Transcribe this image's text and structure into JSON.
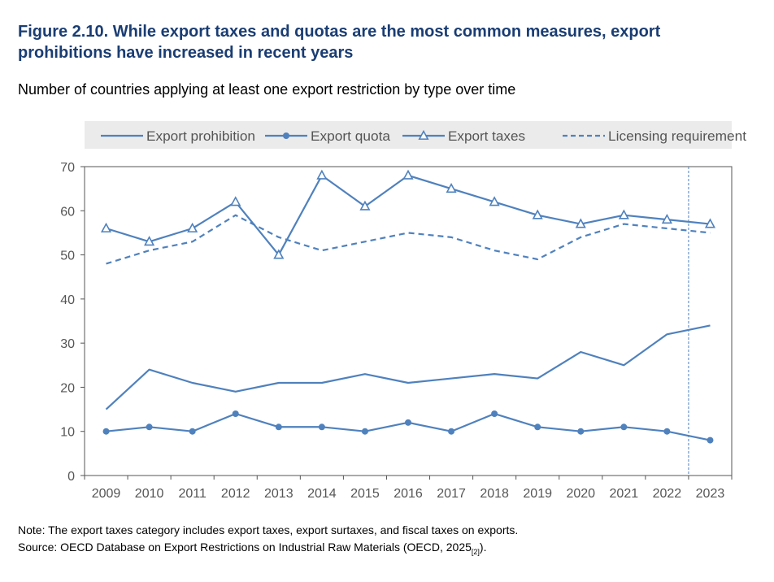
{
  "title": "Figure 2.10. While export taxes and quotas are the most common measures, export prohibitions have increased in recent years",
  "subtitle": "Number of countries applying at least one export restriction by type over time",
  "note": "Note: The export taxes category includes export taxes, export surtaxes, and fiscal taxes on exports.",
  "source_text": "Source: OECD Database on Export Restrictions on Industrial Raw Materials (OECD, 2025",
  "source_ref": "[2]",
  "source_end": ").",
  "colors": {
    "series": "#4f81bd",
    "axis": "#555555",
    "legend_bg": "#ebebeb",
    "title": "#1a3d73"
  },
  "chart_data": {
    "type": "line",
    "categories": [
      "2009",
      "2010",
      "2011",
      "2012",
      "2013",
      "2014",
      "2015",
      "2016",
      "2017",
      "2018",
      "2019",
      "2020",
      "2021",
      "2022",
      "2023"
    ],
    "ylim": [
      0,
      70
    ],
    "yticks": [
      0,
      10,
      20,
      30,
      40,
      50,
      60,
      70
    ],
    "grid": false,
    "legend_position": "top",
    "reference_line_after": "2022",
    "series": [
      {
        "name": "Export prohibition",
        "marker": "none",
        "dash": "solid",
        "values": [
          15,
          24,
          21,
          19,
          21,
          21,
          23,
          21,
          22,
          23,
          22,
          28,
          25,
          32,
          34
        ]
      },
      {
        "name": "Export quota",
        "marker": "circle",
        "dash": "solid",
        "values": [
          10,
          11,
          10,
          14,
          11,
          11,
          10,
          12,
          10,
          14,
          11,
          10,
          11,
          10,
          8
        ]
      },
      {
        "name": "Export taxes",
        "marker": "triangle",
        "dash": "solid",
        "values": [
          56,
          53,
          56,
          62,
          50,
          68,
          61,
          68,
          65,
          62,
          59,
          57,
          59,
          58,
          57
        ]
      },
      {
        "name": "Licensing requirement",
        "marker": "none",
        "dash": "dashed",
        "values": [
          48,
          51,
          53,
          59,
          54,
          51,
          53,
          55,
          54,
          51,
          49,
          54,
          57,
          56,
          55
        ]
      }
    ]
  }
}
